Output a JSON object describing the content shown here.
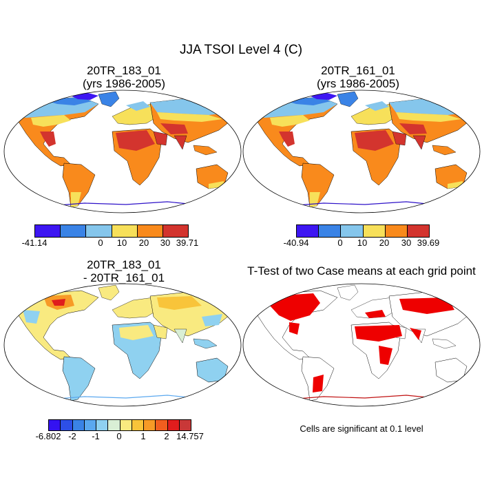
{
  "title": "JJA TSOI Level 4 (C)",
  "panels": [
    {
      "title_line1": "20TR_183_01",
      "title_line2": "(yrs 1986-2005)"
    },
    {
      "title_line1": "20TR_161_01",
      "title_line2": "(yrs 1986-2005)"
    },
    {
      "title_line1": "20TR_183_01",
      "title_line2": "- 20TR_161_01"
    },
    {
      "title_line1": "T-Test of two Case means at each grid point",
      "title_line2": ""
    }
  ],
  "colorbars": {
    "panel1": {
      "colors": [
        "#3d16f2",
        "#3a83e6",
        "#85c6ec",
        "#f7e05a",
        "#f98a1c",
        "#d3342e"
      ],
      "labels": [
        "-41.14",
        "0",
        "10",
        "20",
        "30",
        "39.71"
      ]
    },
    "panel2": {
      "colors": [
        "#3d16f2",
        "#3a83e6",
        "#85c6ec",
        "#f7e05a",
        "#f98a1c",
        "#d3342e"
      ],
      "labels": [
        "-40.94",
        "0",
        "10",
        "20",
        "30",
        "39.69"
      ]
    },
    "panel3": {
      "colors": [
        "#3412f1",
        "#2d4fe6",
        "#3a83e6",
        "#5aa8ef",
        "#8fd1f0",
        "#d9efd5",
        "#f9ea80",
        "#f8c43a",
        "#f79a26",
        "#f15e1f",
        "#e01d1d",
        "#c93838"
      ],
      "labels": [
        "-6.802",
        "-2",
        "-1",
        "0",
        "1",
        "2",
        "14.757"
      ]
    }
  },
  "significance_note": "Cells are significant at 0.1 level",
  "colors": {
    "significant": "#ee0000",
    "coast_antarctica_p1": "#2c10c8",
    "coast_antarctica_p3": "#c01010"
  }
}
